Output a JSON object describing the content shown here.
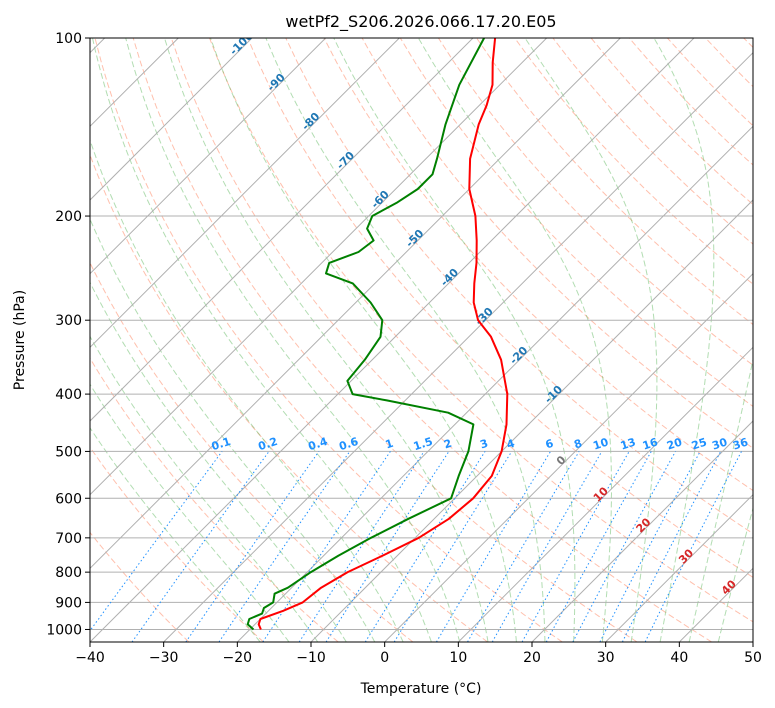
{
  "chart_data": {
    "type": "line",
    "title": "wetPf2_S206.2026.066.17.20.E05",
    "xlabel": "Temperature (°C)",
    "ylabel": "Pressure (hPa)",
    "xlim": [
      -40,
      50
    ],
    "ylim": [
      1050,
      100
    ],
    "y_scale": "log",
    "skew": "isotherms slanted 45 degrees",
    "x_ticks": [
      -40,
      -30,
      -20,
      -10,
      0,
      10,
      20,
      30,
      40,
      50
    ],
    "y_ticks": [
      100,
      200,
      300,
      400,
      500,
      600,
      700,
      800,
      900,
      1000
    ],
    "grid": true,
    "series": [
      {
        "name": "temperature",
        "color": "#ff0000",
        "points": [
          [
            1000,
            -18.5
          ],
          [
            980,
            -19.5
          ],
          [
            960,
            -20.0
          ],
          [
            930,
            -18.0
          ],
          [
            900,
            -16.5
          ],
          [
            850,
            -16.0
          ],
          [
            800,
            -14.5
          ],
          [
            750,
            -12.0
          ],
          [
            700,
            -9.5
          ],
          [
            650,
            -8.0
          ],
          [
            600,
            -7.5
          ],
          [
            550,
            -8.0
          ],
          [
            500,
            -10.0
          ],
          [
            450,
            -13.0
          ],
          [
            400,
            -17.0
          ],
          [
            350,
            -22.5
          ],
          [
            320,
            -27.0
          ],
          [
            300,
            -31.0
          ],
          [
            280,
            -34.0
          ],
          [
            260,
            -36.5
          ],
          [
            240,
            -39.0
          ],
          [
            220,
            -42.0
          ],
          [
            200,
            -45.5
          ],
          [
            180,
            -50.0
          ],
          [
            160,
            -54.0
          ],
          [
            140,
            -57.5
          ],
          [
            130,
            -59.0
          ],
          [
            120,
            -61.0
          ],
          [
            110,
            -64.0
          ],
          [
            100,
            -67.0
          ]
        ]
      },
      {
        "name": "dewpoint",
        "color": "#008000",
        "points": [
          [
            1000,
            -19.5
          ],
          [
            980,
            -21.0
          ],
          [
            960,
            -21.5
          ],
          [
            940,
            -20.5
          ],
          [
            920,
            -21.0
          ],
          [
            900,
            -20.5
          ],
          [
            870,
            -21.5
          ],
          [
            850,
            -20.5
          ],
          [
            800,
            -19.5
          ],
          [
            750,
            -18.0
          ],
          [
            700,
            -16.0
          ],
          [
            650,
            -13.5
          ],
          [
            600,
            -10.5
          ],
          [
            550,
            -12.5
          ],
          [
            500,
            -14.5
          ],
          [
            450,
            -17.5
          ],
          [
            430,
            -22.5
          ],
          [
            410,
            -32.5
          ],
          [
            400,
            -38.0
          ],
          [
            380,
            -40.5
          ],
          [
            350,
            -41.0
          ],
          [
            320,
            -42.0
          ],
          [
            300,
            -44.0
          ],
          [
            280,
            -48.0
          ],
          [
            260,
            -53.0
          ],
          [
            250,
            -58.0
          ],
          [
            240,
            -59.0
          ],
          [
            230,
            -56.5
          ],
          [
            220,
            -56.0
          ],
          [
            210,
            -58.5
          ],
          [
            200,
            -59.5
          ],
          [
            190,
            -58.0
          ],
          [
            180,
            -57.0
          ],
          [
            170,
            -57.0
          ],
          [
            160,
            -58.5
          ],
          [
            140,
            -62.0
          ],
          [
            120,
            -65.5
          ],
          [
            100,
            -68.5
          ]
        ]
      }
    ],
    "isotherm_labels": [
      -100,
      -90,
      -80,
      -70,
      -60,
      -50,
      -40,
      -30,
      -20,
      -10
    ],
    "freezing_label": "0",
    "warm_isotherm_labels": [
      10,
      20,
      30,
      40
    ],
    "mixing_ratio_labels": [
      "0.1",
      "0.2",
      "0.4",
      "0.6",
      "1",
      "1.5",
      "2",
      "3",
      "4",
      "6",
      "8",
      "10",
      "13",
      "16",
      "20",
      "25",
      "30",
      "36"
    ],
    "colors": {
      "temperature": "#ff0000",
      "dewpoint": "#008000",
      "isotherm_label": "#1f77b4",
      "warm_label": "#d62728",
      "mixing_ratio": "#1e90ff",
      "dry_adiabat": "#ff8c69",
      "moist_adiabat": "#66bb66",
      "grid": "#b0b0b0"
    }
  }
}
